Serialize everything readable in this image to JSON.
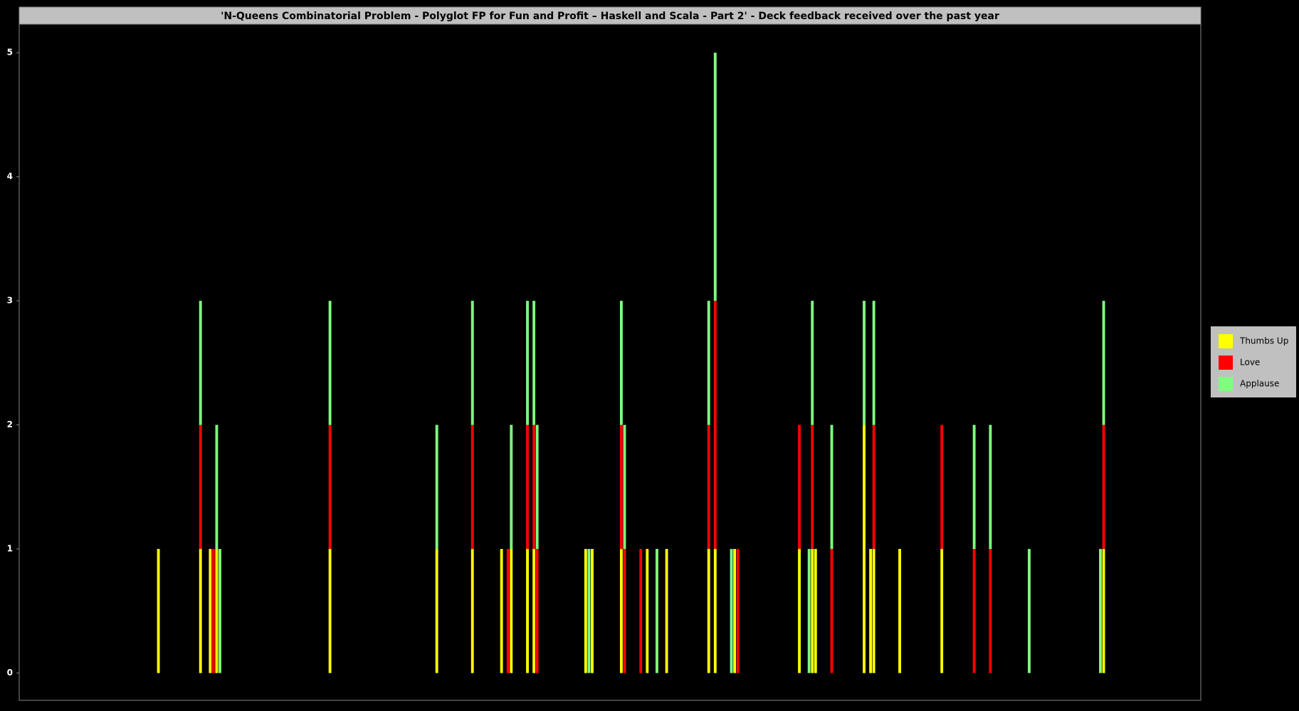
{
  "chart_data": {
    "type": "stacked-bar",
    "title": "'N-Queens Combinatorial Problem - Polyglot FP for Fun and Profit – Haskell and Scala - Part 2' - Deck feedback received over the past year",
    "x": [
      43,
      56,
      59,
      60,
      61,
      62,
      96,
      129,
      140,
      149,
      151,
      152,
      157,
      159,
      160,
      175,
      176,
      177,
      186,
      187,
      192,
      194,
      197,
      200,
      213,
      215,
      220,
      221,
      222,
      241,
      244,
      245,
      246,
      251,
      261,
      263,
      264,
      272,
      285,
      295,
      300,
      312,
      334,
      335
    ],
    "xlim": [
      0,
      365
    ],
    "ylim": [
      -0.22,
      5.23
    ],
    "yticks": [
      0,
      1,
      2,
      3,
      4,
      5
    ],
    "legend": "right",
    "series": [
      {
        "name": "Thumbs Up",
        "color": "#ffff00",
        "values": [
          1,
          1,
          1,
          0,
          1,
          0,
          1,
          1,
          1,
          1,
          0,
          1,
          1,
          1,
          0,
          1,
          0,
          1,
          1,
          0,
          0,
          1,
          0,
          1,
          1,
          1,
          0,
          1,
          0,
          1,
          0,
          1,
          1,
          0,
          2,
          1,
          1,
          1,
          1,
          0,
          0,
          0,
          0,
          1
        ]
      },
      {
        "name": "Love",
        "color": "#ff0000",
        "values": [
          0,
          1,
          0,
          1,
          0,
          0,
          1,
          0,
          1,
          0,
          1,
          0,
          1,
          1,
          1,
          0,
          0,
          0,
          1,
          1,
          1,
          0,
          0,
          0,
          1,
          2,
          0,
          0,
          1,
          1,
          0,
          1,
          0,
          1,
          0,
          0,
          1,
          0,
          1,
          1,
          1,
          0,
          0,
          1
        ]
      },
      {
        "name": "Applause",
        "color": "#80ff80",
        "values": [
          0,
          1,
          0,
          0,
          1,
          1,
          1,
          1,
          1,
          0,
          0,
          1,
          1,
          1,
          1,
          0,
          1,
          0,
          1,
          1,
          0,
          0,
          1,
          0,
          1,
          2,
          1,
          0,
          0,
          0,
          1,
          1,
          0,
          1,
          1,
          0,
          1,
          0,
          0,
          1,
          1,
          1,
          1,
          1
        ]
      }
    ]
  }
}
